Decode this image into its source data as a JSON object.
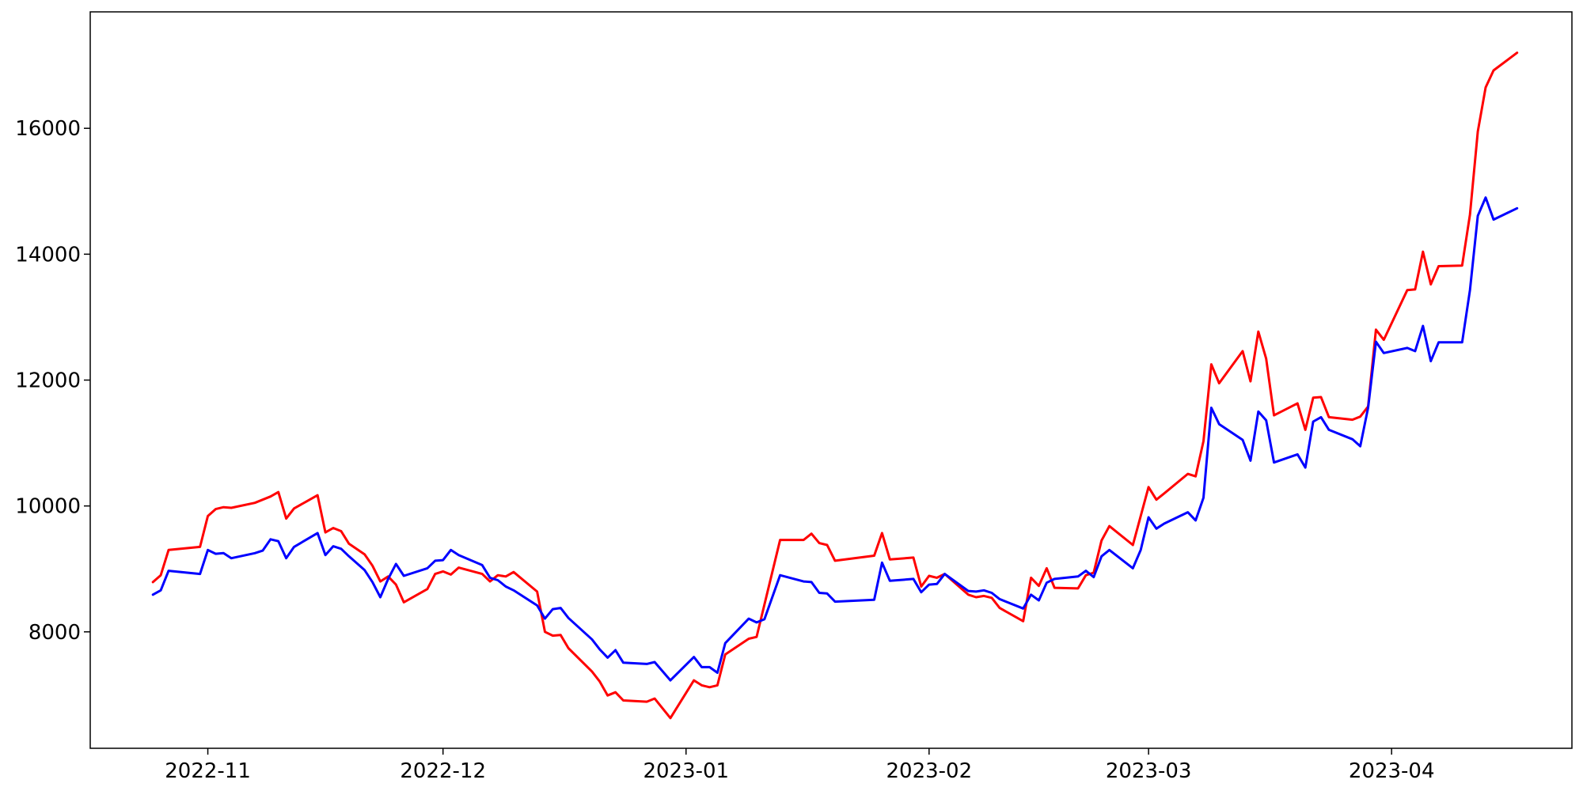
{
  "chart_data": {
    "type": "line",
    "title": "",
    "xlabel": "",
    "ylabel": "",
    "x_axis_type": "date",
    "xlim": [
      "2022-10-17",
      "2023-04-24"
    ],
    "ylim": [
      6150,
      17850
    ],
    "grid": false,
    "legend": "none",
    "x_ticks": [
      "2022-11-01",
      "2022-12-01",
      "2023-01-01",
      "2023-02-01",
      "2023-03-01",
      "2023-04-01"
    ],
    "x_tick_labels": [
      "2022-11",
      "2022-12",
      "2023-01",
      "2023-02",
      "2023-03",
      "2023-04"
    ],
    "y_ticks": [
      8000,
      10000,
      12000,
      14000,
      16000
    ],
    "y_tick_labels": [
      "8000",
      "10000",
      "12000",
      "14000",
      "16000"
    ],
    "series": [
      {
        "color": "#ff0000",
        "points": [
          [
            "2022-10-25",
            8790
          ],
          [
            "2022-10-26",
            8900
          ],
          [
            "2022-10-27",
            9300
          ],
          [
            "2022-10-31",
            9350
          ],
          [
            "2022-11-01",
            9840
          ],
          [
            "2022-11-02",
            9950
          ],
          [
            "2022-11-03",
            9980
          ],
          [
            "2022-11-04",
            9970
          ],
          [
            "2022-11-07",
            10050
          ],
          [
            "2022-11-08",
            10100
          ],
          [
            "2022-11-09",
            10150
          ],
          [
            "2022-11-10",
            10220
          ],
          [
            "2022-11-11",
            9800
          ],
          [
            "2022-11-12",
            9960
          ],
          [
            "2022-11-15",
            10170
          ],
          [
            "2022-11-16",
            9580
          ],
          [
            "2022-11-17",
            9650
          ],
          [
            "2022-11-18",
            9600
          ],
          [
            "2022-11-19",
            9400
          ],
          [
            "2022-11-21",
            9230
          ],
          [
            "2022-11-22",
            9050
          ],
          [
            "2022-11-23",
            8800
          ],
          [
            "2022-11-24",
            8880
          ],
          [
            "2022-11-25",
            8750
          ],
          [
            "2022-11-26",
            8470
          ],
          [
            "2022-11-29",
            8680
          ],
          [
            "2022-11-30",
            8920
          ],
          [
            "2022-12-01",
            8960
          ],
          [
            "2022-12-02",
            8910
          ],
          [
            "2022-12-03",
            9020
          ],
          [
            "2022-12-06",
            8920
          ],
          [
            "2022-12-07",
            8800
          ],
          [
            "2022-12-08",
            8900
          ],
          [
            "2022-12-09",
            8880
          ],
          [
            "2022-12-10",
            8950
          ],
          [
            "2022-12-13",
            8640
          ],
          [
            "2022-12-14",
            8000
          ],
          [
            "2022-12-15",
            7940
          ],
          [
            "2022-12-16",
            7950
          ],
          [
            "2022-12-17",
            7740
          ],
          [
            "2022-12-20",
            7370
          ],
          [
            "2022-12-21",
            7210
          ],
          [
            "2022-12-22",
            6990
          ],
          [
            "2022-12-23",
            7040
          ],
          [
            "2022-12-24",
            6910
          ],
          [
            "2022-12-27",
            6890
          ],
          [
            "2022-12-28",
            6940
          ],
          [
            "2022-12-30",
            6630
          ],
          [
            "2023-01-02",
            7230
          ],
          [
            "2023-01-03",
            7150
          ],
          [
            "2023-01-04",
            7120
          ],
          [
            "2023-01-05",
            7150
          ],
          [
            "2023-01-06",
            7640
          ],
          [
            "2023-01-09",
            7890
          ],
          [
            "2023-01-10",
            7920
          ],
          [
            "2023-01-13",
            9460
          ],
          [
            "2023-01-16",
            9460
          ],
          [
            "2023-01-17",
            9560
          ],
          [
            "2023-01-18",
            9410
          ],
          [
            "2023-01-19",
            9380
          ],
          [
            "2023-01-20",
            9130
          ],
          [
            "2023-01-25",
            9210
          ],
          [
            "2023-01-26",
            9570
          ],
          [
            "2023-01-27",
            9150
          ],
          [
            "2023-01-30",
            9180
          ],
          [
            "2023-01-31",
            8720
          ],
          [
            "2023-02-01",
            8890
          ],
          [
            "2023-02-02",
            8860
          ],
          [
            "2023-02-03",
            8920
          ],
          [
            "2023-02-06",
            8590
          ],
          [
            "2023-02-07",
            8550
          ],
          [
            "2023-02-08",
            8570
          ],
          [
            "2023-02-09",
            8540
          ],
          [
            "2023-02-10",
            8380
          ],
          [
            "2023-02-13",
            8170
          ],
          [
            "2023-02-14",
            8860
          ],
          [
            "2023-02-15",
            8730
          ],
          [
            "2023-02-16",
            9010
          ],
          [
            "2023-02-17",
            8700
          ],
          [
            "2023-02-20",
            8690
          ],
          [
            "2023-02-21",
            8900
          ],
          [
            "2023-02-22",
            8940
          ],
          [
            "2023-02-23",
            9450
          ],
          [
            "2023-02-24",
            9680
          ],
          [
            "2023-02-27",
            9380
          ],
          [
            "2023-03-01",
            10300
          ],
          [
            "2023-03-02",
            10100
          ],
          [
            "2023-03-03",
            10200
          ],
          [
            "2023-03-06",
            10510
          ],
          [
            "2023-03-07",
            10470
          ],
          [
            "2023-03-08",
            11030
          ],
          [
            "2023-03-09",
            12250
          ],
          [
            "2023-03-10",
            11950
          ],
          [
            "2023-03-13",
            12460
          ],
          [
            "2023-03-14",
            11980
          ],
          [
            "2023-03-15",
            12770
          ],
          [
            "2023-03-16",
            12340
          ],
          [
            "2023-03-17",
            11440
          ],
          [
            "2023-03-20",
            11630
          ],
          [
            "2023-03-21",
            11210
          ],
          [
            "2023-03-22",
            11720
          ],
          [
            "2023-03-23",
            11730
          ],
          [
            "2023-03-24",
            11410
          ],
          [
            "2023-03-27",
            11370
          ],
          [
            "2023-03-28",
            11420
          ],
          [
            "2023-03-29",
            11580
          ],
          [
            "2023-03-30",
            12800
          ],
          [
            "2023-03-31",
            12640
          ],
          [
            "2023-04-03",
            13430
          ],
          [
            "2023-04-04",
            13440
          ],
          [
            "2023-04-05",
            14040
          ],
          [
            "2023-04-06",
            13520
          ],
          [
            "2023-04-07",
            13810
          ],
          [
            "2023-04-10",
            13820
          ],
          [
            "2023-04-11",
            14630
          ],
          [
            "2023-04-12",
            15950
          ],
          [
            "2023-04-13",
            16650
          ],
          [
            "2023-04-14",
            16920
          ],
          [
            "2023-04-17",
            17200
          ]
        ]
      },
      {
        "color": "#0000ff",
        "points": [
          [
            "2022-10-25",
            8590
          ],
          [
            "2022-10-26",
            8660
          ],
          [
            "2022-10-27",
            8970
          ],
          [
            "2022-10-31",
            8920
          ],
          [
            "2022-11-01",
            9300
          ],
          [
            "2022-11-02",
            9240
          ],
          [
            "2022-11-03",
            9250
          ],
          [
            "2022-11-04",
            9170
          ],
          [
            "2022-11-07",
            9250
          ],
          [
            "2022-11-08",
            9290
          ],
          [
            "2022-11-09",
            9470
          ],
          [
            "2022-11-10",
            9440
          ],
          [
            "2022-11-11",
            9170
          ],
          [
            "2022-11-12",
            9350
          ],
          [
            "2022-11-15",
            9570
          ],
          [
            "2022-11-16",
            9220
          ],
          [
            "2022-11-17",
            9360
          ],
          [
            "2022-11-18",
            9320
          ],
          [
            "2022-11-19",
            9200
          ],
          [
            "2022-11-21",
            8980
          ],
          [
            "2022-11-22",
            8790
          ],
          [
            "2022-11-23",
            8550
          ],
          [
            "2022-11-24",
            8840
          ],
          [
            "2022-11-25",
            9080
          ],
          [
            "2022-11-26",
            8890
          ],
          [
            "2022-11-29",
            9010
          ],
          [
            "2022-11-30",
            9130
          ],
          [
            "2022-12-01",
            9140
          ],
          [
            "2022-12-02",
            9300
          ],
          [
            "2022-12-03",
            9220
          ],
          [
            "2022-12-06",
            9060
          ],
          [
            "2022-12-07",
            8860
          ],
          [
            "2022-12-08",
            8820
          ],
          [
            "2022-12-09",
            8720
          ],
          [
            "2022-12-10",
            8660
          ],
          [
            "2022-12-13",
            8420
          ],
          [
            "2022-12-14",
            8210
          ],
          [
            "2022-12-15",
            8360
          ],
          [
            "2022-12-16",
            8380
          ],
          [
            "2022-12-17",
            8220
          ],
          [
            "2022-12-20",
            7880
          ],
          [
            "2022-12-21",
            7720
          ],
          [
            "2022-12-22",
            7590
          ],
          [
            "2022-12-23",
            7710
          ],
          [
            "2022-12-24",
            7510
          ],
          [
            "2022-12-27",
            7490
          ],
          [
            "2022-12-28",
            7520
          ],
          [
            "2022-12-30",
            7230
          ],
          [
            "2023-01-02",
            7600
          ],
          [
            "2023-01-03",
            7440
          ],
          [
            "2023-01-04",
            7440
          ],
          [
            "2023-01-05",
            7350
          ],
          [
            "2023-01-06",
            7820
          ],
          [
            "2023-01-09",
            8210
          ],
          [
            "2023-01-10",
            8150
          ],
          [
            "2023-01-11",
            8200
          ],
          [
            "2023-01-13",
            8900
          ],
          [
            "2023-01-16",
            8800
          ],
          [
            "2023-01-17",
            8790
          ],
          [
            "2023-01-18",
            8620
          ],
          [
            "2023-01-19",
            8610
          ],
          [
            "2023-01-20",
            8480
          ],
          [
            "2023-01-25",
            8510
          ],
          [
            "2023-01-26",
            9100
          ],
          [
            "2023-01-27",
            8810
          ],
          [
            "2023-01-30",
            8840
          ],
          [
            "2023-01-31",
            8630
          ],
          [
            "2023-02-01",
            8750
          ],
          [
            "2023-02-02",
            8760
          ],
          [
            "2023-02-03",
            8920
          ],
          [
            "2023-02-06",
            8650
          ],
          [
            "2023-02-07",
            8640
          ],
          [
            "2023-02-08",
            8660
          ],
          [
            "2023-02-09",
            8620
          ],
          [
            "2023-02-10",
            8520
          ],
          [
            "2023-02-13",
            8370
          ],
          [
            "2023-02-14",
            8590
          ],
          [
            "2023-02-15",
            8500
          ],
          [
            "2023-02-16",
            8780
          ],
          [
            "2023-02-17",
            8840
          ],
          [
            "2023-02-20",
            8880
          ],
          [
            "2023-02-21",
            8970
          ],
          [
            "2023-02-22",
            8870
          ],
          [
            "2023-02-23",
            9200
          ],
          [
            "2023-02-24",
            9300
          ],
          [
            "2023-02-27",
            9010
          ],
          [
            "2023-02-28",
            9300
          ],
          [
            "2023-03-01",
            9820
          ],
          [
            "2023-03-02",
            9640
          ],
          [
            "2023-03-03",
            9720
          ],
          [
            "2023-03-06",
            9900
          ],
          [
            "2023-03-07",
            9770
          ],
          [
            "2023-03-08",
            10130
          ],
          [
            "2023-03-09",
            11560
          ],
          [
            "2023-03-10",
            11300
          ],
          [
            "2023-03-13",
            11050
          ],
          [
            "2023-03-14",
            10720
          ],
          [
            "2023-03-15",
            11500
          ],
          [
            "2023-03-16",
            11360
          ],
          [
            "2023-03-17",
            10690
          ],
          [
            "2023-03-20",
            10820
          ],
          [
            "2023-03-21",
            10610
          ],
          [
            "2023-03-22",
            11340
          ],
          [
            "2023-03-23",
            11410
          ],
          [
            "2023-03-24",
            11210
          ],
          [
            "2023-03-27",
            11060
          ],
          [
            "2023-03-28",
            10950
          ],
          [
            "2023-03-29",
            11560
          ],
          [
            "2023-03-30",
            12610
          ],
          [
            "2023-03-31",
            12430
          ],
          [
            "2023-04-03",
            12510
          ],
          [
            "2023-04-04",
            12460
          ],
          [
            "2023-04-05",
            12860
          ],
          [
            "2023-04-06",
            12300
          ],
          [
            "2023-04-07",
            12600
          ],
          [
            "2023-04-10",
            12600
          ],
          [
            "2023-04-11",
            13430
          ],
          [
            "2023-04-12",
            14610
          ],
          [
            "2023-04-13",
            14900
          ],
          [
            "2023-04-14",
            14550
          ],
          [
            "2023-04-17",
            14730
          ]
        ]
      }
    ]
  }
}
